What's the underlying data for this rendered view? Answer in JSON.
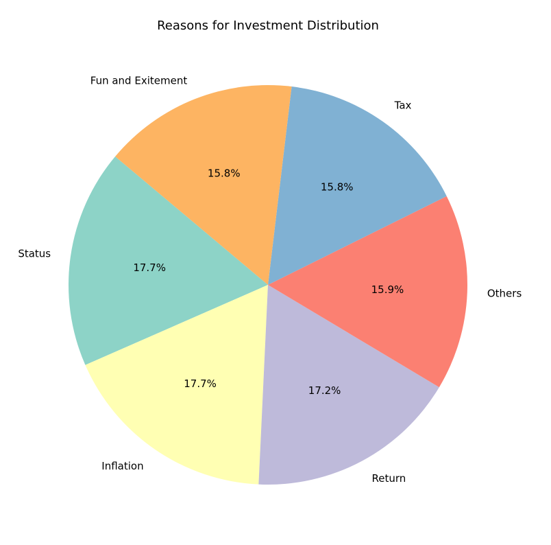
{
  "chart_data": {
    "type": "pie",
    "title": "Reasons for Investment Distribution",
    "categories": [
      "Status",
      "Inflation",
      "Return",
      "Others",
      "Tax",
      "Fun and Exitement"
    ],
    "values": [
      17.7,
      17.7,
      17.2,
      15.9,
      15.8,
      15.8
    ],
    "percent_labels": [
      "17.7%",
      "17.7%",
      "17.2%",
      "15.9%",
      "15.8%",
      "15.8%"
    ],
    "colors": [
      "#8dd3c7",
      "#ffffb3",
      "#bebada",
      "#fb8072",
      "#80b1d3",
      "#fdb462"
    ],
    "start_angle_deg": 140,
    "direction": "counterclockwise",
    "legend": "none"
  }
}
